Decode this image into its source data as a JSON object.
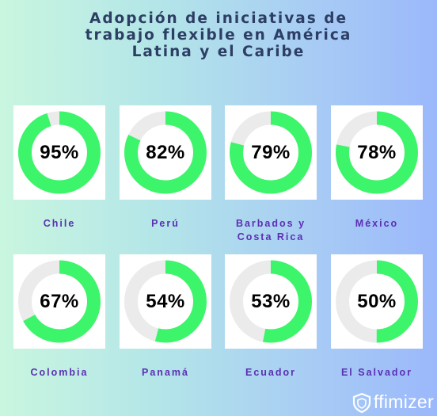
{
  "title_lines": [
    "Adopción de iniciativas de",
    "trabajo flexible en América",
    "Latina y el Caribe"
  ],
  "colors": {
    "accent": "#3cf56a",
    "track": "#ebebeb",
    "label": "#5b2fb3",
    "title": "#2c3e63"
  },
  "chart_data": {
    "type": "donut",
    "title": "Adopción de iniciativas de trabajo flexible en América Latina y el Caribe",
    "unit": "%",
    "categories": [
      "Chile",
      "Perú",
      "Barbados y Costa Rica",
      "México",
      "Colombia",
      "Panamá",
      "Ecuador",
      "El Salvador"
    ],
    "values": [
      95,
      82,
      79,
      78,
      67,
      54,
      53,
      50
    ]
  },
  "items": [
    {
      "value_text": "95%",
      "label_lines": [
        "Chile"
      ]
    },
    {
      "value_text": "82%",
      "label_lines": [
        "Perú"
      ]
    },
    {
      "value_text": "79%",
      "label_lines": [
        "Barbados y",
        "Costa Rica"
      ]
    },
    {
      "value_text": "78%",
      "label_lines": [
        "México"
      ]
    },
    {
      "value_text": "67%",
      "label_lines": [
        "Colombia"
      ]
    },
    {
      "value_text": "54%",
      "label_lines": [
        "Panamá"
      ]
    },
    {
      "value_text": "53%",
      "label_lines": [
        "Ecuador"
      ]
    },
    {
      "value_text": "50%",
      "label_lines": [
        "El Salvador"
      ]
    }
  ],
  "logo": {
    "text": "ffimizer",
    "icon": "offimizer-logo-icon"
  }
}
